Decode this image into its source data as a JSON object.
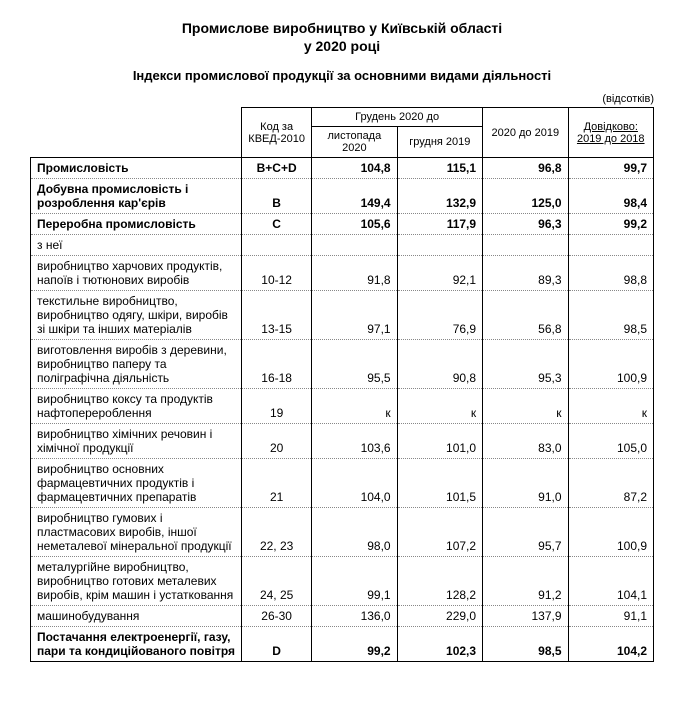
{
  "title_line1": "Промислове виробництво у Київській області",
  "title_line2": "у  2020 році",
  "subtitle": "Індекси промислової продукції за основними видами діяльності",
  "unit_note": "(відсотків)",
  "header": {
    "code": "Код за КВЕД-2010",
    "dec_group": "Грудень 2020 до",
    "dec_nov": "листопада 2020",
    "dec_dec": "грудня 2019",
    "y2020": "2020 до 2019",
    "ref": "Довідково: 2019 до 2018"
  },
  "rows": [
    {
      "label": "Промисловість",
      "code": "B+C+D",
      "v1": "104,8",
      "v2": "115,1",
      "v3": "96,8",
      "v4": "99,7",
      "bold": true
    },
    {
      "label": "Добувна промисловість і розроблення кар'єрів",
      "code": "B",
      "v1": "149,4",
      "v2": "132,9",
      "v3": "125,0",
      "v4": "98,4",
      "bold": true
    },
    {
      "label": "Переробна промисловість",
      "code": "C",
      "v1": "105,6",
      "v2": "117,9",
      "v3": "96,3",
      "v4": "99,2",
      "bold": true
    },
    {
      "label": "з неї",
      "code": "",
      "v1": "",
      "v2": "",
      "v3": "",
      "v4": "",
      "bold": false
    },
    {
      "label": "виробництво харчових продуктів, напоїв і тютюнових виробів",
      "code": "10-12",
      "v1": "91,8",
      "v2": "92,1",
      "v3": "89,3",
      "v4": "98,8",
      "bold": false
    },
    {
      "label": "текстильне виробництво, виробництво одягу, шкіри, виробів зі шкіри та інших матеріалів",
      "code": "13-15",
      "v1": "97,1",
      "v2": "76,9",
      "v3": "56,8",
      "v4": "98,5",
      "bold": false
    },
    {
      "label": "виготовлення виробів з деревини, виробництво паперу та поліграфічна діяльність",
      "code": "16-18",
      "v1": "95,5",
      "v2": "90,8",
      "v3": "95,3",
      "v4": "100,9",
      "bold": false
    },
    {
      "label": "виробництво коксу та продуктів нафтоперероблення",
      "code": "19",
      "v1": "к",
      "v2": "к",
      "v3": "к",
      "v4": "к",
      "bold": false
    },
    {
      "label": "виробництво хімічних речовин і хімічної продукції",
      "code": "20",
      "v1": "103,6",
      "v2": "101,0",
      "v3": "83,0",
      "v4": "105,0",
      "bold": false
    },
    {
      "label": "виробництво основних фармацевтичних продуктів і фармацевтичних препаратів",
      "code": "21",
      "v1": "104,0",
      "v2": "101,5",
      "v3": "91,0",
      "v4": "87,2",
      "bold": false
    },
    {
      "label": "виробництво гумових і пластмасових виробів, іншої неметалевої мінеральної продукції",
      "code": "22, 23",
      "v1": "98,0",
      "v2": "107,2",
      "v3": "95,7",
      "v4": "100,9",
      "bold": false
    },
    {
      "label": "металургійне виробництво, виробництво готових металевих виробів, крім машин і устатковання",
      "code": "24, 25",
      "v1": "99,1",
      "v2": "128,2",
      "v3": "91,2",
      "v4": "104,1",
      "bold": false
    },
    {
      "label": "машинобудування",
      "code": "26-30",
      "v1": "136,0",
      "v2": "229,0",
      "v3": "137,9",
      "v4": "91,1",
      "bold": false
    },
    {
      "label": "Постачання електроенергії, газу, пари та кондиційованого повітря",
      "code": "D",
      "v1": "99,2",
      "v2": "102,3",
      "v3": "98,5",
      "v4": "104,2",
      "bold": true
    }
  ]
}
